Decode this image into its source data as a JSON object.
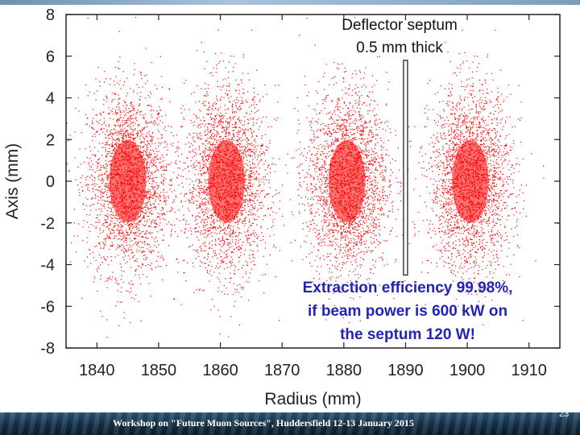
{
  "chart_data": {
    "type": "scatter",
    "title": "",
    "xlabel": "Radius (mm)",
    "ylabel": "Axis (mm)",
    "xlim": [
      1835,
      1915
    ],
    "ylim": [
      -8,
      8
    ],
    "x_ticks": [
      1840,
      1850,
      1860,
      1870,
      1880,
      1890,
      1900,
      1910
    ],
    "y_ticks": [
      -8,
      -6,
      -4,
      -2,
      0,
      2,
      4,
      6,
      8
    ],
    "grid": false,
    "point_color": "#ff0000",
    "series": [
      {
        "center": [
          1845,
          0
        ],
        "spread_x": 3.3,
        "spread_y": 2.2
      },
      {
        "center": [
          1861,
          0
        ],
        "spread_x": 3.3,
        "spread_y": 2.2
      },
      {
        "center": [
          1880.5,
          0
        ],
        "spread_x": 3.3,
        "spread_y": 2.2
      },
      {
        "center": [
          1900.5,
          0
        ],
        "spread_x": 3.3,
        "spread_y": 2.2
      }
    ],
    "septum": {
      "x": 1890,
      "y_top": 5.8,
      "y_bottom": -4.5,
      "label_line1": "Deflector septum",
      "label_line2": "0.5 mm thick"
    },
    "annotation": {
      "line1": "Extraction efficiency 99.98%,",
      "line2": "if beam power is 600 kW on",
      "line3": "the septum 120 W!",
      "color": "#2323b8"
    }
  },
  "footer": {
    "text": "Workshop on \"Future Muon Sources\", Huddersfield 12-13 January 2015",
    "page_number": "23"
  }
}
